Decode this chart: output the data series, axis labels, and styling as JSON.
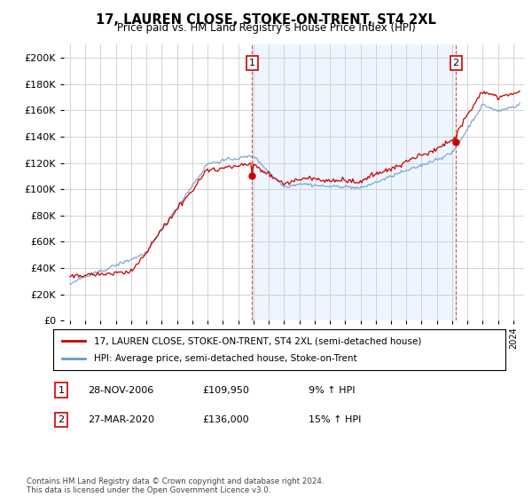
{
  "title": "17, LAUREN CLOSE, STOKE-ON-TRENT, ST4 2XL",
  "subtitle": "Price paid vs. HM Land Registry's House Price Index (HPI)",
  "legend_line1": "17, LAUREN CLOSE, STOKE-ON-TRENT, ST4 2XL (semi-detached house)",
  "legend_line2": "HPI: Average price, semi-detached house, Stoke-on-Trent",
  "annotation1_label": "1",
  "annotation1_date": "28-NOV-2006",
  "annotation1_price": "£109,950",
  "annotation1_hpi": "9% ↑ HPI",
  "annotation2_label": "2",
  "annotation2_date": "27-MAR-2020",
  "annotation2_price": "£136,000",
  "annotation2_hpi": "15% ↑ HPI",
  "footer": "Contains HM Land Registry data © Crown copyright and database right 2024.\nThis data is licensed under the Open Government Licence v3.0.",
  "red_color": "#cc0000",
  "blue_color": "#6699cc",
  "fill_color": "#ddeeff",
  "background_color": "#ffffff",
  "grid_color": "#cccccc",
  "ylim": [
    0,
    210000
  ],
  "yticks": [
    0,
    20000,
    40000,
    60000,
    80000,
    100000,
    120000,
    140000,
    160000,
    180000,
    200000
  ],
  "sale1_x": 2006.916,
  "sale1_y": 109950,
  "sale2_x": 2020.245,
  "sale2_y": 136000,
  "dashed_line1_x": 2006.916,
  "dashed_line2_x": 2020.245,
  "xlim_left": 1994.6,
  "xlim_right": 2024.7
}
